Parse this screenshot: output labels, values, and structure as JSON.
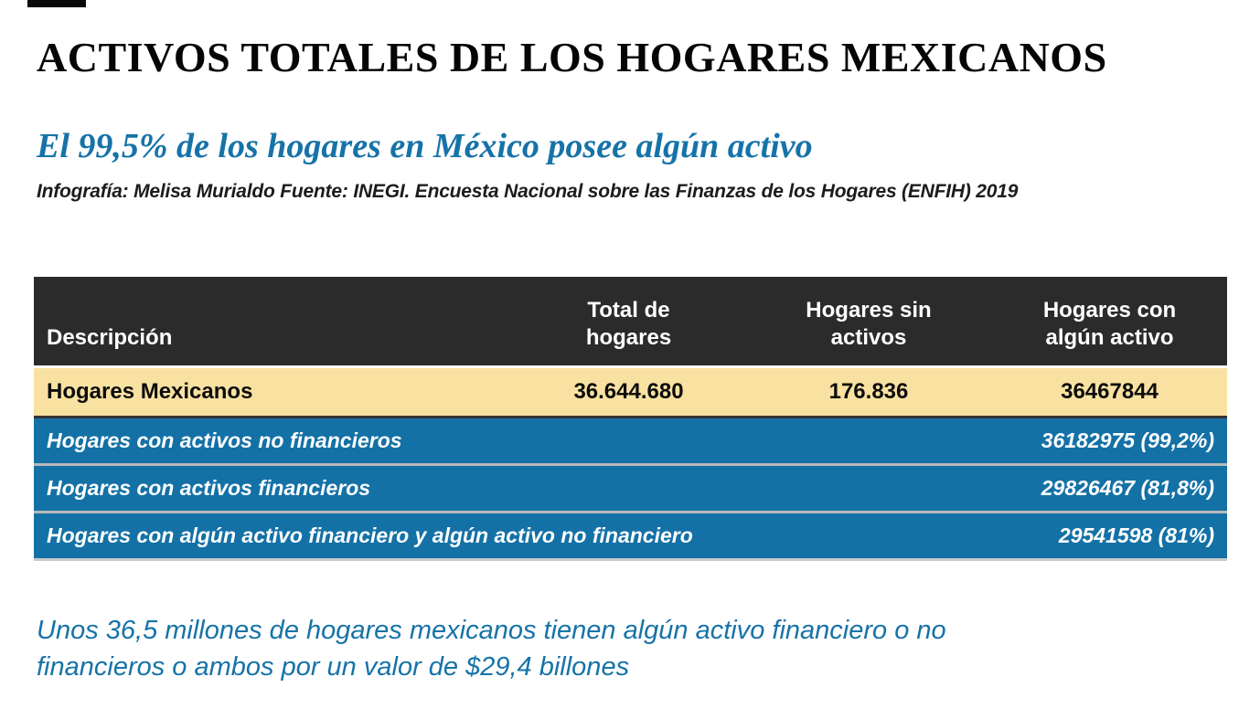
{
  "page": {
    "title": "ACTIVOS TOTALES DE LOS HOGARES MEXICANOS",
    "subtitle": "El 99,5% de los hogares en México posee algún activo",
    "credits": "Infografía: Melisa Murialdo Fuente: INEGI. Encuesta Nacional sobre las Finanzas de los Hogares (ENFIH) 2019",
    "footer_note": "Unos 36,5 millones de hogares mexicanos tienen algún activo financiero o no financieros o ambos por un valor de $29,4 billones"
  },
  "table": {
    "headers": [
      "Descripción",
      "Total de hogares",
      "Hogares sin activos",
      "Hogares con algún activo"
    ],
    "summary_row": {
      "label": "Hogares Mexicanos",
      "total_de_hogares": "36.644.680",
      "hogares_sin_activos": "176.836",
      "hogares_con_algun_activo": "36467844"
    },
    "detail_rows": [
      {
        "label": "Hogares con activos no financieros",
        "value": "36182975 (99,2%)"
      },
      {
        "label": "Hogares con activos financieros",
        "value": "29826467 (81,8%)"
      },
      {
        "label": "Hogares con algún activo financiero y algún activo no financiero",
        "value": "29541598 (81%)"
      }
    ]
  },
  "chart_data": {
    "type": "table",
    "title": "ACTIVOS TOTALES DE LOS HOGARES MEXICANOS",
    "subtitle": "El 99,5% de los hogares en México posee algún activo",
    "source": "Infografía: Melisa Murialdo Fuente: INEGI. Encuesta Nacional sobre las Finanzas de los Hogares (ENFIH) 2019",
    "columns": [
      "Descripción",
      "Total de hogares",
      "Hogares sin activos",
      "Hogares con algún activo"
    ],
    "rows": [
      {
        "descripcion": "Hogares Mexicanos",
        "total_de_hogares": 36644680,
        "hogares_sin_activos": 176836,
        "hogares_con_algun_activo": 36467844
      },
      {
        "descripcion": "Hogares con activos no financieros",
        "hogares_con_algun_activo": 36182975,
        "porcentaje": "99,2%"
      },
      {
        "descripcion": "Hogares con activos financieros",
        "hogares_con_algun_activo": 29826467,
        "porcentaje": "81,8%"
      },
      {
        "descripcion": "Hogares con algún activo financiero y algún activo no financiero",
        "hogares_con_algun_activo": 29541598,
        "porcentaje": "81%"
      }
    ],
    "annotations": [
      "Unos 36,5 millones de hogares mexicanos tienen algún activo financiero o no financieros o ambos por un valor de $29,4 billones"
    ]
  },
  "colors": {
    "accent_blue": "#1673A8",
    "row_blue": "#1371A6",
    "header_bg": "#2B2B2B",
    "highlight_yellow": "#F9E2A1",
    "separator_gray": "#B9B9B9",
    "text_dark": "#1C1C1C"
  }
}
